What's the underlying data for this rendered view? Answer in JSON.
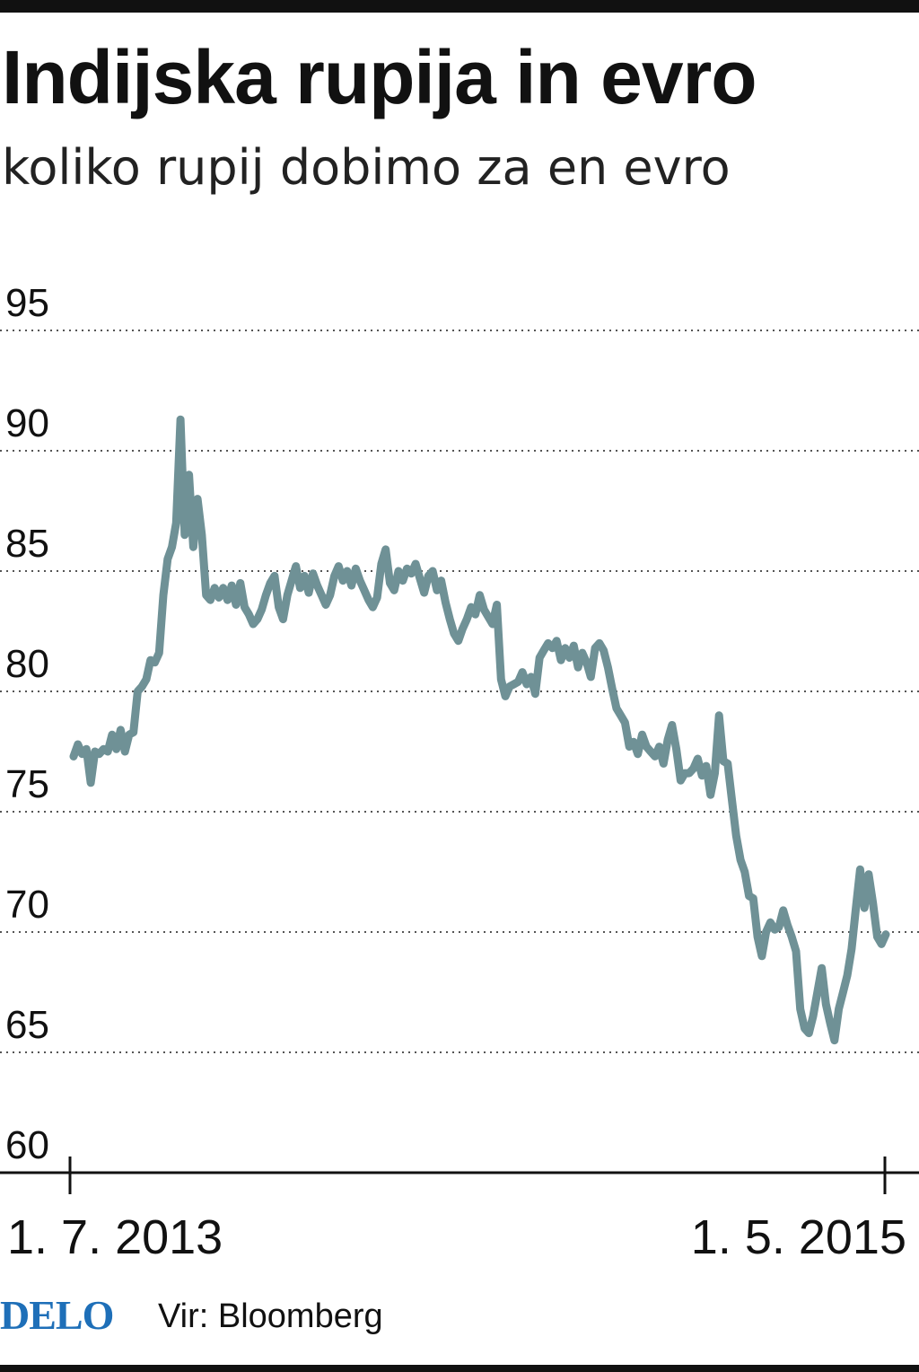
{
  "title": "Indijska rupija in evro",
  "subtitle": "koliko rupij dobimo za en evro",
  "footer": {
    "logo": "DELO",
    "source": "Vir: Bloomberg"
  },
  "colors": {
    "line": "#6f9196",
    "grid": "#555555",
    "text": "#111111",
    "logo": "#1e6fb8"
  },
  "chart_data": {
    "type": "line",
    "title": "Indijska rupija in evro",
    "subtitle": "koliko rupij dobimo za en evro",
    "x_tick_labels": [
      "1. 7. 2013",
      "1. 5. 2015"
    ],
    "y_ticks": [
      60,
      65,
      70,
      75,
      80,
      85,
      90,
      95
    ],
    "ylim": [
      60,
      95
    ],
    "grid": "horizontal-dotted",
    "source": "Vir: Bloomberg",
    "series": [
      {
        "values": [
          77.3,
          77.8,
          77.4,
          77.6,
          76.2,
          77.5,
          77.4,
          77.6,
          77.5,
          78.2,
          77.6,
          78.4,
          77.5,
          78.2,
          78.3,
          80.0,
          80.2,
          80.5,
          81.3,
          81.2,
          81.6,
          84.0,
          85.5,
          86.0,
          87.0,
          91.3,
          86.5,
          89.0,
          86.0,
          88.0,
          86.5,
          84.0,
          83.8,
          84.3,
          83.9,
          84.3,
          83.8,
          84.4,
          83.6,
          84.5,
          83.5,
          83.2,
          82.8,
          83.0,
          83.4,
          84.0,
          84.5,
          84.8,
          83.5,
          83.0,
          84.0,
          84.6,
          85.2,
          84.3,
          84.8,
          84.1,
          84.9,
          84.4,
          84.0,
          83.6,
          84.0,
          84.8,
          85.2,
          84.6,
          85.0,
          84.4,
          85.1,
          84.6,
          84.2,
          83.8,
          83.5,
          83.9,
          85.3,
          85.9,
          84.5,
          84.2,
          85.0,
          84.6,
          85.1,
          84.9,
          85.3,
          84.7,
          84.1,
          84.8,
          85.0,
          84.2,
          84.6,
          83.7,
          83.0,
          82.4,
          82.1,
          82.6,
          83.0,
          83.5,
          83.2,
          84.0,
          83.4,
          83.1,
          82.8,
          83.6,
          80.5,
          79.8,
          80.2,
          80.3,
          80.4,
          80.8,
          80.3,
          80.6,
          79.9,
          81.4,
          81.7,
          82.0,
          81.8,
          82.1,
          81.3,
          81.8,
          81.4,
          81.9,
          81.0,
          81.6,
          81.2,
          80.6,
          81.8,
          82.0,
          81.7,
          81.0,
          80.1,
          79.3,
          79.0,
          78.7,
          77.7,
          77.9,
          77.4,
          78.2,
          77.7,
          77.5,
          77.3,
          77.7,
          77.0,
          78.0,
          78.6,
          77.6,
          76.3,
          76.6,
          76.6,
          76.8,
          77.2,
          76.5,
          76.9,
          75.7,
          76.6,
          79.0,
          77.1,
          77.0,
          75.5,
          74.0,
          73.0,
          72.5,
          71.5,
          71.4,
          69.8,
          69.0,
          70.0,
          70.4,
          70.1,
          70.2,
          70.9,
          70.3,
          69.8,
          69.2,
          66.8,
          66.0,
          65.8,
          66.5,
          67.5,
          68.5,
          67.0,
          66.2,
          65.5,
          66.8,
          67.5,
          68.2,
          69.3,
          71.0,
          72.6,
          71.0,
          72.4,
          71.2,
          69.8,
          69.5,
          69.9
        ]
      }
    ]
  }
}
